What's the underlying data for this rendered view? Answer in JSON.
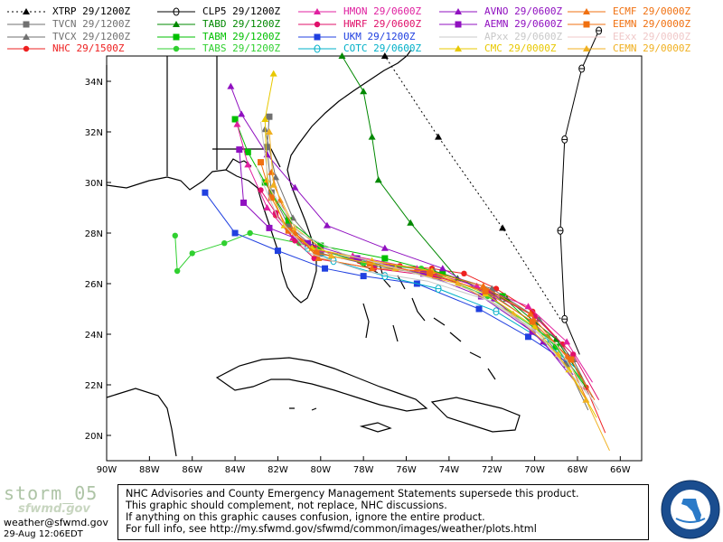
{
  "legend": [
    {
      "label": "XTRP 29/1200Z",
      "color": "#000000",
      "marker": "triangle",
      "dash": true
    },
    {
      "label": "TVCN 29/1200Z",
      "color": "#707070",
      "marker": "square"
    },
    {
      "label": "TVCX 29/1200Z",
      "color": "#707070",
      "marker": "triangle"
    },
    {
      "label": "NHC 29/1500Z",
      "color": "#ee2020",
      "marker": "circle"
    },
    {
      "label": "CLP5 29/1200Z",
      "color": "#000000",
      "marker": "theta"
    },
    {
      "label": "TABD 29/1200Z",
      "color": "#008800",
      "marker": "triangle"
    },
    {
      "label": "TABM 29/1200Z",
      "color": "#00c000",
      "marker": "square"
    },
    {
      "label": "TABS 29/1200Z",
      "color": "#30d030",
      "marker": "circle"
    },
    {
      "label": "HMON 29/0600Z",
      "color": "#e020a0",
      "marker": "triangle"
    },
    {
      "label": "HWRF 29/0600Z",
      "color": "#e0106a",
      "marker": "circle"
    },
    {
      "label": "UKM 29/1200Z",
      "color": "#2040e0",
      "marker": "square"
    },
    {
      "label": "COTC 29/0600Z",
      "color": "#00b0c8",
      "marker": "theta"
    },
    {
      "label": "AVNO 29/0600Z",
      "color": "#9010c0",
      "marker": "triangle"
    },
    {
      "label": "AEMN 29/0600Z",
      "color": "#9010c0",
      "marker": "square"
    },
    {
      "label": "APxx 29/0600Z",
      "color": "#c8c8c8",
      "marker": "none"
    },
    {
      "label": "CMC 29/0000Z",
      "color": "#e8c800",
      "marker": "triangle"
    },
    {
      "label": "ECMF 29/0000Z",
      "color": "#f07010",
      "marker": "triangle"
    },
    {
      "label": "EEMN 29/0000Z",
      "color": "#f07010",
      "marker": "square"
    },
    {
      "label": "EExx 29/0000Z",
      "color": "#f0c8c8",
      "marker": "none"
    },
    {
      "label": "CEMN 29/0000Z",
      "color": "#f0b020",
      "marker": "triangle"
    }
  ],
  "axes": {
    "lon_labels": [
      "90W",
      "88W",
      "86W",
      "84W",
      "82W",
      "80W",
      "78W",
      "76W",
      "74W",
      "72W",
      "70W",
      "68W",
      "66W"
    ],
    "lat_labels": [
      "34N",
      "32N",
      "30N",
      "28N",
      "26N",
      "24N",
      "22N",
      "20N"
    ],
    "lon_values": [
      -90,
      -88,
      -86,
      -84,
      -82,
      -80,
      -78,
      -76,
      -74,
      -72,
      -70,
      -68,
      -66
    ],
    "lat_values": [
      34,
      32,
      30,
      28,
      26,
      24,
      22,
      20
    ]
  },
  "tracks": [
    {
      "model": "XTRP",
      "color": "#000000",
      "dash": true,
      "marker": "triangle",
      "points": [
        [
          -68.8,
          24.6
        ],
        [
          -71.5,
          28.2
        ],
        [
          -74.5,
          31.8
        ],
        [
          -77,
          35
        ]
      ]
    },
    {
      "model": "CLP5",
      "color": "#000000",
      "marker": "theta",
      "points": [
        [
          -67.9,
          23.2
        ],
        [
          -68.6,
          24.6
        ],
        [
          -68.8,
          28.1
        ],
        [
          -68.6,
          31.7
        ],
        [
          -67.8,
          34.5
        ],
        [
          -67,
          36
        ]
      ]
    },
    {
      "model": "NHC",
      "color": "#ee2020",
      "marker": "circle",
      "points": [
        [
          -66.7,
          20.1
        ],
        [
          -67.6,
          21.9
        ],
        [
          -68.7,
          23.6
        ],
        [
          -70.1,
          24.9
        ],
        [
          -71.8,
          25.8
        ],
        [
          -73.3,
          26.4
        ],
        [
          -74.8,
          26.6
        ],
        [
          -76.3,
          26.7
        ],
        [
          -78.2,
          26.9
        ],
        [
          -80.3,
          27.4
        ],
        [
          -81.4,
          28.1
        ],
        [
          -82.1,
          28.7
        ]
      ]
    },
    {
      "model": "TVCN",
      "color": "#707070",
      "marker": "square",
      "points": [
        [
          -67.5,
          21
        ],
        [
          -68.5,
          22.8
        ],
        [
          -70,
          24.4
        ],
        [
          -72,
          25.6
        ],
        [
          -74.5,
          26.3
        ],
        [
          -77.5,
          26.7
        ],
        [
          -80,
          27.2
        ],
        [
          -81.5,
          28.3
        ],
        [
          -82.3,
          29.6
        ],
        [
          -82.5,
          31.4
        ],
        [
          -82.4,
          32.6
        ]
      ]
    },
    {
      "model": "TVCX",
      "color": "#707070",
      "marker": "triangle",
      "points": [
        [
          -67.3,
          21.5
        ],
        [
          -68.2,
          23
        ],
        [
          -69.8,
          24.6
        ],
        [
          -72,
          25.8
        ],
        [
          -74.7,
          26.5
        ],
        [
          -77.6,
          26.8
        ],
        [
          -80,
          27.3
        ],
        [
          -81.3,
          28.6
        ],
        [
          -82.1,
          30.2
        ],
        [
          -82.6,
          32.1
        ]
      ]
    },
    {
      "model": "TABD",
      "color": "#008800",
      "marker": "triangle",
      "points": [
        [
          -67.8,
          22.3
        ],
        [
          -69,
          23.8
        ],
        [
          -71.3,
          25.4
        ],
        [
          -73.6,
          26.2
        ],
        [
          -75.8,
          28.4
        ],
        [
          -77.3,
          30.1
        ],
        [
          -77.6,
          31.8
        ],
        [
          -78,
          33.6
        ],
        [
          -79,
          35
        ]
      ]
    },
    {
      "model": "TABM",
      "color": "#00c000",
      "marker": "square",
      "points": [
        [
          -67.6,
          21.9
        ],
        [
          -69,
          23.5
        ],
        [
          -71.5,
          25.5
        ],
        [
          -74.3,
          26.4
        ],
        [
          -77,
          27
        ],
        [
          -80,
          27.5
        ],
        [
          -81.5,
          28.5
        ],
        [
          -82.6,
          30
        ],
        [
          -83.4,
          31.2
        ],
        [
          -84,
          32.5
        ]
      ]
    },
    {
      "model": "TABS",
      "color": "#30d030",
      "marker": "circle",
      "points": [
        [
          -67.7,
          22.1
        ],
        [
          -69.4,
          23.9
        ],
        [
          -72.2,
          25.5
        ],
        [
          -75.3,
          26.6
        ],
        [
          -78,
          26.8
        ],
        [
          -81,
          27.6
        ],
        [
          -83.3,
          28
        ],
        [
          -84.5,
          27.6
        ],
        [
          -86,
          27.2
        ],
        [
          -86.7,
          26.5
        ],
        [
          -86.8,
          27.9
        ]
      ]
    },
    {
      "model": "HMON",
      "color": "#e020a0",
      "marker": "triangle",
      "points": [
        [
          -67.3,
          22.1
        ],
        [
          -68.5,
          23.7
        ],
        [
          -70.3,
          25.1
        ],
        [
          -72.7,
          25.9
        ],
        [
          -75.5,
          26.6
        ],
        [
          -78.5,
          27.1
        ],
        [
          -80.2,
          27.3
        ],
        [
          -81.3,
          27.8
        ],
        [
          -82.5,
          29
        ],
        [
          -83.4,
          30.7
        ],
        [
          -83.9,
          32.3
        ]
      ]
    },
    {
      "model": "HWRF",
      "color": "#e0106a",
      "marker": "circle",
      "points": [
        [
          -67,
          21.4
        ],
        [
          -68.2,
          23.2
        ],
        [
          -70,
          24.7
        ],
        [
          -72.2,
          25.7
        ],
        [
          -74.7,
          26.3
        ],
        [
          -77.5,
          26.6
        ],
        [
          -80.3,
          27
        ],
        [
          -81.2,
          27.7
        ],
        [
          -82.1,
          28.8
        ],
        [
          -82.8,
          29.7
        ]
      ]
    },
    {
      "model": "UKM",
      "color": "#2040e0",
      "marker": "square",
      "points": [
        [
          -68.5,
          22.9
        ],
        [
          -70.3,
          23.9
        ],
        [
          -72.6,
          25
        ],
        [
          -75.5,
          26
        ],
        [
          -78,
          26.3
        ],
        [
          -79.8,
          26.6
        ],
        [
          -82,
          27.3
        ],
        [
          -84,
          28
        ],
        [
          -85.4,
          29.6
        ]
      ]
    },
    {
      "model": "COTC",
      "color": "#00b0c8",
      "marker": "theta",
      "points": [
        [
          -68,
          22.6
        ],
        [
          -69.5,
          23.7
        ],
        [
          -71.8,
          24.9
        ],
        [
          -74.5,
          25.8
        ],
        [
          -77,
          26.3
        ],
        [
          -79.4,
          26.9
        ],
        [
          -80.6,
          27.4
        ]
      ]
    },
    {
      "model": "AVNO",
      "color": "#9010c0",
      "marker": "triangle",
      "points": [
        [
          -67.9,
          21.9
        ],
        [
          -69.6,
          23.7
        ],
        [
          -71.9,
          25.4
        ],
        [
          -74.3,
          26.6
        ],
        [
          -77,
          27.4
        ],
        [
          -79.7,
          28.3
        ],
        [
          -81.2,
          29.8
        ],
        [
          -82.5,
          31.1
        ],
        [
          -83.7,
          32.7
        ],
        [
          -84.2,
          33.8
        ]
      ]
    },
    {
      "model": "AEMN",
      "color": "#9010c0",
      "marker": "square",
      "points": [
        [
          -68.2,
          22.4
        ],
        [
          -70.1,
          24.1
        ],
        [
          -72.5,
          25.5
        ],
        [
          -75.2,
          26.4
        ],
        [
          -78.3,
          27
        ],
        [
          -80.6,
          27.6
        ],
        [
          -82.4,
          28.2
        ],
        [
          -83.6,
          29.2
        ],
        [
          -83.8,
          31.3
        ]
      ]
    },
    {
      "model": "CMC",
      "color": "#e8c800",
      "marker": "triangle",
      "points": [
        [
          -67.1,
          20.7
        ],
        [
          -68.4,
          22.6
        ],
        [
          -70,
          24.3
        ],
        [
          -72.3,
          25.6
        ],
        [
          -74.8,
          26.5
        ],
        [
          -77.6,
          26.9
        ],
        [
          -80.4,
          27.4
        ],
        [
          -81.7,
          28.3
        ],
        [
          -82.5,
          30.1
        ],
        [
          -82.6,
          32.5
        ],
        [
          -82.2,
          34.3
        ]
      ]
    },
    {
      "model": "ECMF",
      "color": "#f07010",
      "marker": "triangle",
      "points": [
        [
          -67.5,
          21.3
        ],
        [
          -68.5,
          23.1
        ],
        [
          -70.2,
          24.8
        ],
        [
          -72.4,
          25.9
        ],
        [
          -74.9,
          26.5
        ],
        [
          -77.6,
          26.6
        ],
        [
          -80.1,
          27
        ],
        [
          -81.2,
          28
        ],
        [
          -81.9,
          29.3
        ],
        [
          -82.3,
          30.4
        ]
      ]
    },
    {
      "model": "EEMN",
      "color": "#f07010",
      "marker": "square",
      "points": [
        [
          -67.2,
          21.4
        ],
        [
          -68.3,
          23
        ],
        [
          -70.1,
          24.5
        ],
        [
          -72.3,
          25.7
        ],
        [
          -74.9,
          26.4
        ],
        [
          -77.7,
          26.8
        ],
        [
          -80.2,
          27.2
        ],
        [
          -81.5,
          28.1
        ],
        [
          -82.3,
          29.4
        ],
        [
          -82.8,
          30.8
        ]
      ]
    },
    {
      "model": "CEMN",
      "color": "#f0b020",
      "marker": "triangle",
      "points": [
        [
          -66.5,
          19.4
        ],
        [
          -67.6,
          21.4
        ],
        [
          -68.9,
          23.2
        ],
        [
          -71,
          24.8
        ],
        [
          -73.6,
          26
        ],
        [
          -76.5,
          26.6
        ],
        [
          -79.5,
          27.1
        ],
        [
          -81.2,
          28.2
        ],
        [
          -82.2,
          29.9
        ],
        [
          -82.4,
          32
        ]
      ]
    },
    {
      "model": "APxx-a",
      "color": "#c8c8c8",
      "marker": "none",
      "points": [
        [
          -67,
          21
        ],
        [
          -69,
          23.6
        ],
        [
          -72,
          25.3
        ],
        [
          -75,
          26.1
        ],
        [
          -78,
          26.5
        ],
        [
          -80.5,
          27.2
        ],
        [
          -82,
          28.6
        ],
        [
          -83,
          30.6
        ]
      ]
    },
    {
      "model": "APxx-b",
      "color": "#c8c8c8",
      "marker": "none",
      "points": [
        [
          -67.5,
          21.6
        ],
        [
          -69.8,
          24
        ],
        [
          -72.8,
          25.7
        ],
        [
          -76,
          26.5
        ],
        [
          -79,
          27.2
        ],
        [
          -81,
          28
        ],
        [
          -82.4,
          29.8
        ],
        [
          -82.8,
          32.4
        ]
      ]
    }
  ],
  "footer": {
    "brand": "storm_05",
    "brand_sub": "sfwmd.gov",
    "email": "weather@sfwmd.gov",
    "timestamp": "29-Aug 12:06EDT",
    "disclaimer": [
      "NHC Advisories and County Emergency Management Statements supersede this product.",
      "This graphic should complement, not replace, NHC discussions.",
      "If anything on this graphic causes confusion, ignore the entire product.",
      "For full info, see  http://my.sfwmd.gov/sfwmd/common/images/weather/plots.html"
    ],
    "seal_text": "SOUTH FLORIDA WATER MANAGEMENT DISTRICT"
  }
}
